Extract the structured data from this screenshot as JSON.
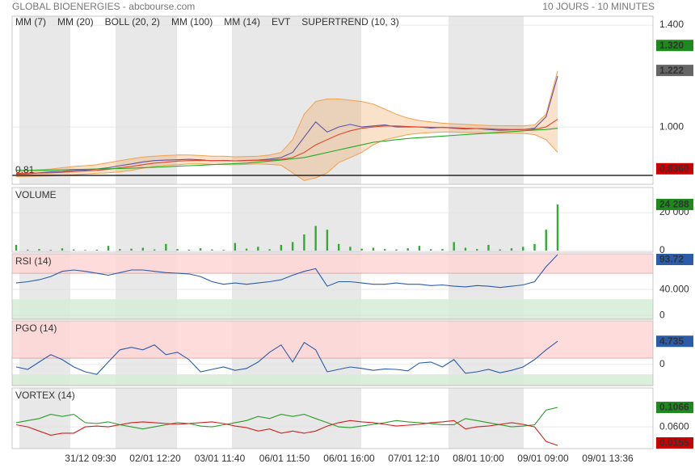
{
  "header": {
    "title": "GLOBAL BIOENERGIES - abcbourse.com",
    "period": "10 JOURS - 10 MINUTES"
  },
  "x_labels": [
    "31/12 09:30",
    "02/01 12:20",
    "03/01 11:40",
    "06/01 11:50",
    "06/01 16:00",
    "07/01 12:10",
    "08/01 10:00",
    "09/01 09:00",
    "09/01 13:36"
  ],
  "chart_data": [
    {
      "type": "line",
      "ylim": [
        0.775,
        1.435
      ],
      "yticks": [
        {
          "value": 1.4,
          "label": "1.400"
        },
        {
          "value": 1.0,
          "label": "1.000"
        }
      ],
      "hline": {
        "value": 0.81,
        "label": "0.81"
      },
      "series": [
        {
          "name": "MM (7)",
          "color": "#1f2fcc",
          "values": [
            0.815,
            0.816,
            0.82,
            0.824,
            0.826,
            0.83,
            0.831,
            0.835,
            0.84,
            0.848,
            0.855,
            0.863,
            0.868,
            0.87,
            0.871,
            0.873,
            0.871,
            0.867,
            0.869,
            0.867,
            0.869,
            0.87,
            0.874,
            0.88,
            0.9,
            0.96,
            1.02,
            0.98,
            1.0,
            1.01,
            1.0,
            1.004,
            1.008,
            1.0,
            1.0,
            1.0,
            0.996,
            0.999,
            0.995,
            0.992,
            0.994,
            0.99,
            0.987,
            0.989,
            0.99,
            0.995,
            1.04,
            1.2
          ]
        },
        {
          "name": "MM (20)",
          "color": "#dd2222",
          "values": [
            0.818,
            0.818,
            0.819,
            0.82,
            0.822,
            0.825,
            0.827,
            0.83,
            0.834,
            0.84,
            0.845,
            0.852,
            0.858,
            0.862,
            0.866,
            0.868,
            0.869,
            0.868,
            0.868,
            0.867,
            0.868,
            0.869,
            0.87,
            0.873,
            0.88,
            0.9,
            0.93,
            0.95,
            0.97,
            0.985,
            0.995,
            1.0,
            1.004,
            1.004,
            1.002,
            1.0,
            0.999,
            0.998,
            0.997,
            0.995,
            0.994,
            0.993,
            0.991,
            0.99,
            0.99,
            0.991,
            1.0,
            1.03
          ]
        },
        {
          "name": "BOLL (20, 2)",
          "color": "#f0a050",
          "upper": [
            0.83,
            0.83,
            0.832,
            0.835,
            0.84,
            0.845,
            0.848,
            0.852,
            0.86,
            0.868,
            0.875,
            0.882,
            0.885,
            0.888,
            0.89,
            0.89,
            0.888,
            0.885,
            0.885,
            0.883,
            0.884,
            0.885,
            0.89,
            0.9,
            0.95,
            1.05,
            1.1,
            1.11,
            1.11,
            1.105,
            1.1,
            1.09,
            1.07,
            1.05,
            1.035,
            1.025,
            1.02,
            1.015,
            1.012,
            1.01,
            1.008,
            1.006,
            1.005,
            1.005,
            1.004,
            1.008,
            1.05,
            1.22
          ],
          "lower": [
            0.805,
            0.806,
            0.807,
            0.808,
            0.81,
            0.812,
            0.815,
            0.818,
            0.82,
            0.824,
            0.83,
            0.838,
            0.845,
            0.85,
            0.852,
            0.855,
            0.855,
            0.853,
            0.852,
            0.852,
            0.853,
            0.855,
            0.853,
            0.85,
            0.82,
            0.79,
            0.8,
            0.82,
            0.86,
            0.88,
            0.9,
            0.93,
            0.95,
            0.96,
            0.97,
            0.975,
            0.978,
            0.98,
            0.98,
            0.978,
            0.978,
            0.976,
            0.975,
            0.975,
            0.975,
            0.97,
            0.95,
            0.9
          ]
        },
        {
          "name": "MM (100)",
          "color": "#22aa22",
          "values": [
            0.83,
            0.83,
            0.83,
            0.831,
            0.832,
            0.833,
            0.834,
            0.835,
            0.836,
            0.837,
            0.838,
            0.84,
            0.842,
            0.844,
            0.846,
            0.848,
            0.85,
            0.852,
            0.854,
            0.856,
            0.858,
            0.862,
            0.866,
            0.87,
            0.875,
            0.88,
            0.89,
            0.9,
            0.91,
            0.92,
            0.93,
            0.94,
            0.945,
            0.95,
            0.955,
            0.958,
            0.961,
            0.964,
            0.967,
            0.97,
            0.973,
            0.976,
            0.979,
            0.982,
            0.985,
            0.988,
            0.99,
            0.995
          ]
        }
      ],
      "legend_extra": [
        {
          "name": "MM (14)",
          "color": "#000000"
        },
        {
          "name": "EVT",
          "color": "#000000"
        },
        {
          "name": "SUPERTREND (10, 3)",
          "color": "#aa2222"
        }
      ],
      "markers": [
        {
          "value": 1.32,
          "label": "1.320",
          "color": "#1e8a1e"
        },
        {
          "value": 1.222,
          "label": "1.222",
          "color": "#666666"
        },
        {
          "value": 0.836,
          "label": "0.8360",
          "color": "#cc0000"
        }
      ]
    },
    {
      "type": "bar",
      "title": "VOLUME",
      "ylim": [
        -850,
        33200
      ],
      "yticks": [
        {
          "value": 20000,
          "label": "20 000"
        },
        0
      ],
      "series": [
        {
          "color": "#33aa33",
          "values": [
            3000,
            500,
            800,
            400,
            1200,
            600,
            300,
            500,
            2500,
            800,
            1000,
            1500,
            600,
            3500,
            800,
            500,
            1200,
            600,
            400,
            4000,
            1000,
            2000,
            700,
            3000,
            4500,
            8500,
            13000,
            11000,
            3500,
            2000,
            1000,
            1500,
            800,
            600,
            1200,
            2500,
            700,
            800,
            4500,
            1500,
            800,
            3000,
            600,
            1200,
            2000,
            3500,
            11000,
            24288
          ]
        }
      ],
      "markers": [
        {
          "value": 24288,
          "label": "24 288",
          "color": "#1e8a1e"
        }
      ]
    },
    {
      "type": "line",
      "title": "RSI (14)",
      "ylim": [
        -6,
        95
      ],
      "yticks": [
        {
          "value": 40,
          "label": "40.000"
        },
        0
      ],
      "bands": [
        {
          "from": 65,
          "to": 95,
          "color": "#ffd6d6"
        },
        {
          "from": -6,
          "to": 25,
          "color": "#d6ecd6"
        }
      ],
      "series": [
        {
          "color": "#2a5caa",
          "values": [
            50,
            52,
            55,
            60,
            68,
            70,
            68,
            65,
            62,
            66,
            70,
            70,
            68,
            66,
            65,
            64,
            60,
            52,
            48,
            50,
            48,
            50,
            52,
            55,
            62,
            68,
            72,
            45,
            52,
            52,
            50,
            48,
            48,
            50,
            48,
            48,
            46,
            47,
            45,
            44,
            46,
            45,
            43,
            45,
            47,
            52,
            75,
            93.72
          ]
        }
      ],
      "markers": [
        {
          "value": 93.72,
          "label": "93.72",
          "color": "#2a5caa"
        }
      ]
    },
    {
      "type": "line",
      "title": "PGO (14)",
      "ylim": [
        -4.3,
        8.9
      ],
      "yticks": [
        0
      ],
      "bands": [
        {
          "from": 1.3,
          "to": 8.9,
          "color": "#ffd6d6"
        },
        {
          "from": -4.3,
          "to": -2,
          "color": "#d6ecd6"
        }
      ],
      "series": [
        {
          "color": "#2a5caa",
          "values": [
            -0.5,
            -1,
            0.5,
            2,
            1,
            -0.5,
            -1.5,
            -2,
            0.5,
            3,
            3.5,
            3,
            4,
            2,
            2.5,
            1,
            -1.5,
            -1,
            -0.5,
            -1.2,
            -0.8,
            0.5,
            2.5,
            4,
            0.5,
            4.5,
            3,
            -1.5,
            -1,
            -0.5,
            -0.8,
            -1.2,
            -0.9,
            -1,
            -1.3,
            0.3,
            0.5,
            -0.5,
            1,
            -1.8,
            -1.5,
            -1,
            -1.7,
            -1.2,
            -0.5,
            1,
            3,
            4.735
          ]
        }
      ],
      "markers": [
        {
          "value": 4.735,
          "label": "4.735",
          "color": "#2a5caa"
        }
      ]
    },
    {
      "type": "line",
      "title": "VORTEX (14)",
      "ylim": [
        0.008,
        0.153
      ],
      "yticks": [
        {
          "value": 0.06,
          "label": "0.0600"
        }
      ],
      "series": [
        {
          "color": "#2a9a2a",
          "values": [
            0.07,
            0.075,
            0.08,
            0.09,
            0.085,
            0.09,
            0.07,
            0.068,
            0.072,
            0.065,
            0.06,
            0.055,
            0.06,
            0.065,
            0.07,
            0.068,
            0.062,
            0.06,
            0.065,
            0.07,
            0.075,
            0.085,
            0.08,
            0.09,
            0.085,
            0.09,
            0.08,
            0.07,
            0.06,
            0.058,
            0.062,
            0.066,
            0.07,
            0.075,
            0.072,
            0.07,
            0.068,
            0.065,
            0.065,
            0.08,
            0.075,
            0.07,
            0.065,
            0.06,
            0.062,
            0.065,
            0.1,
            0.1066
          ]
        },
        {
          "color": "#cc2222",
          "values": [
            0.065,
            0.06,
            0.05,
            0.04,
            0.045,
            0.045,
            0.06,
            0.062,
            0.06,
            0.065,
            0.07,
            0.072,
            0.07,
            0.068,
            0.066,
            0.068,
            0.07,
            0.072,
            0.068,
            0.062,
            0.058,
            0.05,
            0.055,
            0.045,
            0.05,
            0.045,
            0.05,
            0.062,
            0.07,
            0.075,
            0.072,
            0.07,
            0.066,
            0.062,
            0.064,
            0.066,
            0.07,
            0.072,
            0.075,
            0.055,
            0.06,
            0.062,
            0.066,
            0.07,
            0.066,
            0.06,
            0.025,
            0.0155
          ]
        }
      ],
      "markers": [
        {
          "value": 0.1066,
          "label": "0.1066",
          "color": "#1e8a1e"
        },
        {
          "value": 0.0155,
          "label": "0.0155",
          "color": "#cc0000"
        }
      ]
    }
  ]
}
